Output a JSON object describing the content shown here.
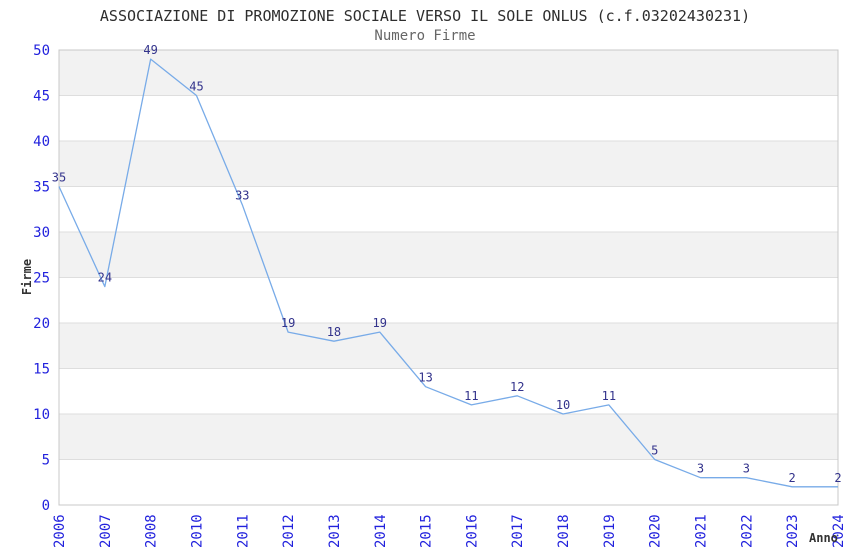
{
  "chart_data": {
    "type": "line",
    "title": "ASSOCIAZIONE DI PROMOZIONE SOCIALE VERSO IL SOLE ONLUS (c.f.03202430231)",
    "subtitle": "Numero Firme",
    "categories": [
      "2006",
      "2007",
      "2008",
      "2010",
      "2011",
      "2012",
      "2013",
      "2014",
      "2015",
      "2016",
      "2017",
      "2018",
      "2019",
      "2020",
      "2021",
      "2022",
      "2023",
      "2024"
    ],
    "values": [
      35,
      24,
      49,
      45,
      33,
      19,
      18,
      19,
      13,
      11,
      12,
      10,
      11,
      5,
      3,
      3,
      2,
      2
    ],
    "xlabel": "Anno",
    "ylabel": "Firme",
    "ylim": [
      0,
      50
    ],
    "ytick_step": 5,
    "yticks": [
      0,
      5,
      10,
      15,
      20,
      25,
      30,
      35,
      40,
      45,
      50
    ],
    "grid": "horizontal-bands",
    "legend": "none",
    "point_labels_visible": true
  },
  "colors": {
    "line": "#78abe8",
    "tick_label": "#2222dd",
    "point_label": "#33338c",
    "band_gray": "#f2f2f2",
    "band_white": "#ffffff",
    "grid_line": "#dedede",
    "plot_border": "#c8c8c8",
    "title": "#2e2e2e",
    "subtitle": "#666666",
    "axis_title": "#333333",
    "background": "#ffffff"
  }
}
